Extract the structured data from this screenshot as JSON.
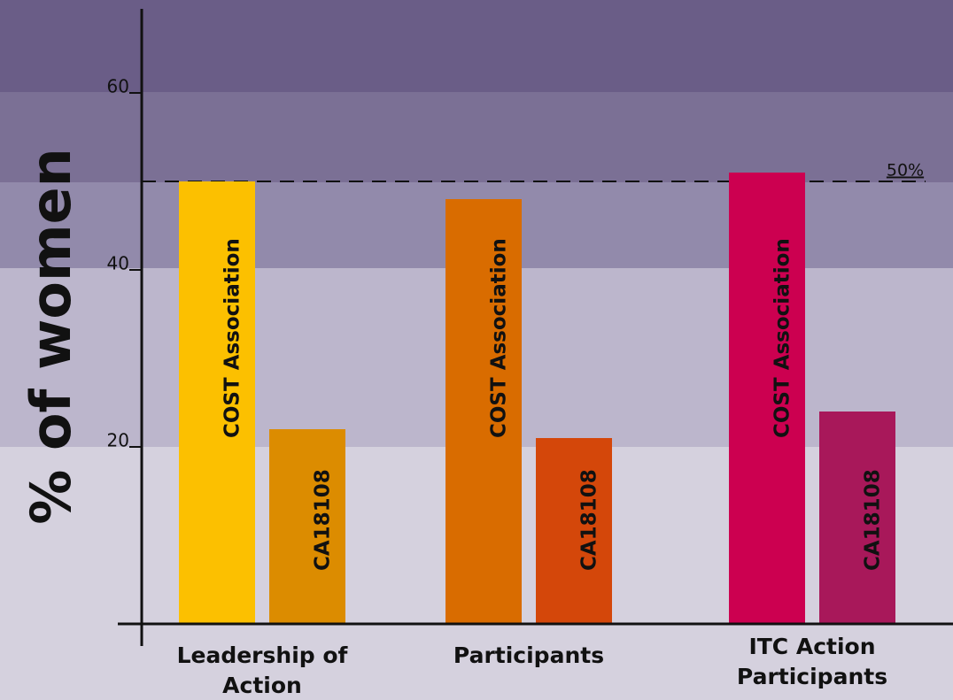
{
  "chart_data": {
    "type": "bar",
    "ylabel": "% of women",
    "categories": [
      "Leadership of Action",
      "Participants",
      "ITC Action Participants"
    ],
    "series": [
      {
        "name": "COST Association",
        "colors": [
          "#fcc000",
          "#d96c00",
          "#cc0050"
        ],
        "values": [
          50,
          48,
          51
        ]
      },
      {
        "name": "CA18108",
        "colors": [
          "#dc8c00",
          "#d4470a",
          "#a8185a"
        ],
        "values": [
          22,
          21,
          24
        ]
      }
    ],
    "ylim": [
      0,
      70
    ],
    "yticks": [
      20,
      40,
      60
    ],
    "reference_line": {
      "value": 50,
      "label": "50%"
    }
  }
}
